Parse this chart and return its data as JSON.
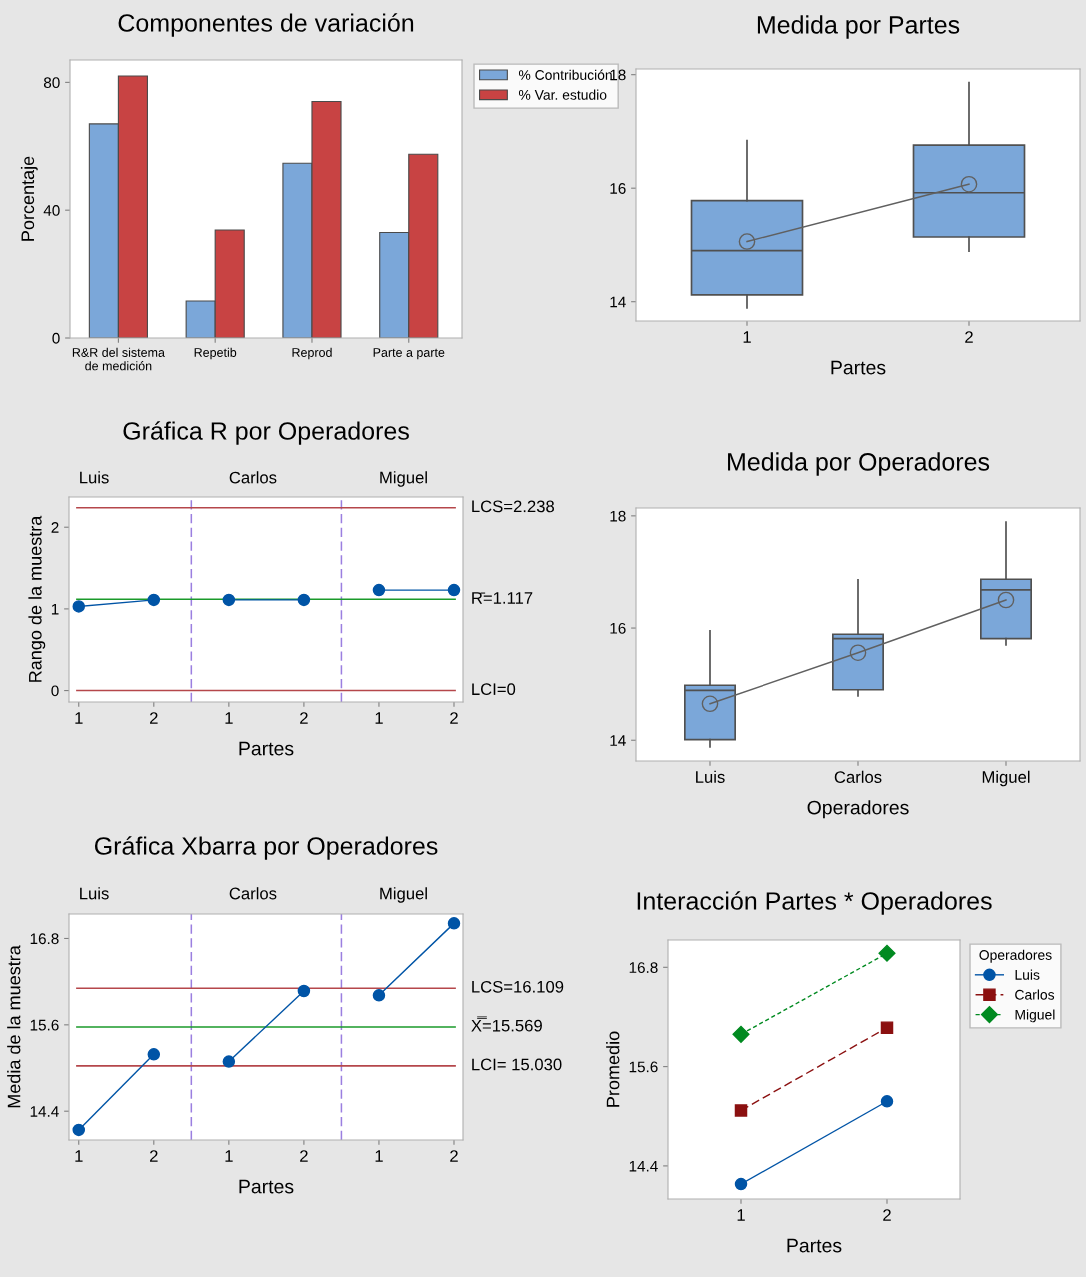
{
  "chart_data": [
    {
      "type": "bar",
      "title": "Componentes de variación",
      "ylabel": "Porcentaje",
      "categories": [
        "R&R del sistema de medición",
        "Repetib",
        "Reprod",
        "Parte a parte"
      ],
      "series": [
        {
          "name": "% Contribución",
          "color": "#7ba7d9",
          "values": [
            67,
            11.6,
            54.7,
            33
          ]
        },
        {
          "name": "% Var. estudio",
          "color": "#c84343",
          "values": [
            82,
            33.8,
            74,
            57.5
          ]
        }
      ],
      "ylim": [
        0,
        87
      ],
      "yticks": [
        0,
        40,
        80
      ],
      "legend": "top right"
    },
    {
      "type": "box",
      "title": "Medida por Partes",
      "xlabel": "Partes",
      "categories": [
        "1",
        "2"
      ],
      "series": [
        {
          "color": "#7ba7d9",
          "boxes": [
            {
              "low": 13.89,
              "q1": 14.12,
              "median": 14.9,
              "q3": 15.78,
              "high": 16.84
            },
            {
              "low": 14.89,
              "q1": 15.14,
              "median": 15.92,
              "q3": 16.76,
              "high": 17.86
            }
          ]
        },
        {
          "type": "line",
          "values": [
            15.06,
            16.07
          ],
          "color": "#606060",
          "marker": "circle"
        }
      ],
      "ylim": [
        13.66,
        18.1
      ],
      "yticks": [
        14,
        16,
        18
      ]
    },
    {
      "type": "line",
      "title": "Gráfica R por Operadores",
      "xlabel": "Partes",
      "ylabel": "Rango de la muestra",
      "annotations": [
        "Luis",
        "Carlos",
        "Miguel"
      ],
      "categories": [
        "1",
        "2",
        "1",
        "2",
        "1",
        "2"
      ],
      "series": [
        {
          "values": [
            1.03,
            1.11,
            null,
            null,
            null,
            null
          ],
          "color": "#0054a6"
        },
        {
          "values": [
            null,
            null,
            1.11,
            1.11,
            null,
            null
          ],
          "color": "#0054a6"
        },
        {
          "values": [
            null,
            null,
            null,
            null,
            1.23,
            1.23
          ],
          "color": "#0054a6"
        }
      ],
      "marker": "circle",
      "ref_lines": [
        {
          "axis": "y",
          "value": 2.238,
          "label": "LCS=2.238",
          "color": "#b5474b"
        },
        {
          "axis": "y",
          "value": 1.117,
          "label": "R̄=1.117",
          "color": "#1a9a2a"
        },
        {
          "axis": "y",
          "value": 0,
          "label": "LCI=0",
          "color": "#b5474b"
        }
      ],
      "ylim": [
        -0.14,
        2.37
      ],
      "yticks": [
        0,
        1,
        2
      ]
    },
    {
      "type": "box",
      "title": "Medida por Operadores",
      "xlabel": "Operadores",
      "categories": [
        "Luis",
        "Carlos",
        "Miguel"
      ],
      "series": [
        {
          "color": "#7ba7d9",
          "boxes": [
            {
              "low": 13.88,
              "q1": 14.01,
              "median": 14.89,
              "q3": 14.98,
              "high": 15.95
            },
            {
              "low": 14.79,
              "q1": 14.9,
              "median": 15.81,
              "q3": 15.89,
              "high": 16.86
            },
            {
              "low": 15.7,
              "q1": 15.81,
              "median": 16.68,
              "q3": 16.87,
              "high": 17.89
            }
          ]
        },
        {
          "type": "line",
          "values": [
            14.65,
            15.56,
            16.5
          ],
          "color": "#606060",
          "marker": "circle"
        }
      ],
      "ylim": [
        13.63,
        18.14
      ],
      "yticks": [
        14,
        16,
        18
      ]
    },
    {
      "type": "line",
      "title": "Gráfica Xbarra por Operadores",
      "xlabel": "Partes",
      "ylabel": "Media de la muestra",
      "annotations": [
        "Luis",
        "Carlos",
        "Miguel"
      ],
      "categories": [
        "1",
        "2",
        "1",
        "2",
        "1",
        "2"
      ],
      "series": [
        {
          "values": [
            14.14,
            15.19,
            null,
            null,
            null,
            null
          ],
          "color": "#0054a6"
        },
        {
          "values": [
            null,
            null,
            15.09,
            16.07,
            null,
            null
          ],
          "color": "#0054a6"
        },
        {
          "values": [
            null,
            null,
            null,
            null,
            16.01,
            17.01
          ],
          "color": "#0054a6"
        }
      ],
      "marker": "circle",
      "ref_lines": [
        {
          "axis": "y",
          "value": 16.109,
          "label": "LCS=16.109",
          "color": "#b5474b"
        },
        {
          "axis": "y",
          "value": 15.569,
          "label": "X̿=15.569",
          "color": "#1a9a2a"
        },
        {
          "axis": "y",
          "value": 15.03,
          "label": "LCI= 15.030",
          "color": "#b5474b"
        }
      ],
      "ylim": [
        14.0,
        17.14
      ],
      "yticks": [
        14.4,
        15.6,
        16.8
      ]
    },
    {
      "type": "line",
      "title": "Interacción Partes * Operadores",
      "xlabel": "Partes",
      "ylabel": "Promedio",
      "legend_title": "Operadores",
      "legend": "top right",
      "series": [
        {
          "name": "Luis",
          "values": [
            14.18,
            15.18
          ],
          "color": "#0054a6",
          "marker": "circle",
          "line_style": "solid"
        },
        {
          "name": "Carlos",
          "values": [
            15.07,
            16.07
          ],
          "color": "#8b1010",
          "marker": "square",
          "line_style": "dashed"
        },
        {
          "name": "Miguel",
          "values": [
            15.99,
            16.97
          ],
          "color": "#008a20",
          "marker": "diamond",
          "line_style": "dotted"
        }
      ],
      "categories": [
        "1",
        "2"
      ],
      "ylim": [
        14.0,
        17.13
      ],
      "yticks": [
        14.4,
        15.6,
        16.8
      ]
    }
  ]
}
